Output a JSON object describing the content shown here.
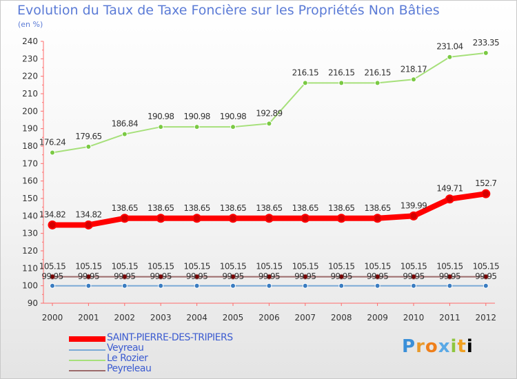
{
  "title": "Evolution du Taux de Taxe Foncière sur les Propriétés Non Bâties",
  "unit_label": "(en %)",
  "logo_text": "Proxiti",
  "chart_data": {
    "type": "line",
    "title": "Evolution du Taux de Taxe Foncière sur les Propriétés Non Bâties",
    "ylabel": "(en %)",
    "xlabel": "",
    "ylim": [
      90,
      240
    ],
    "yticks": [
      90,
      100,
      110,
      120,
      130,
      140,
      150,
      160,
      170,
      180,
      190,
      200,
      210,
      220,
      230,
      240
    ],
    "categories": [
      "2000",
      "2001",
      "2002",
      "2003",
      "2004",
      "2005",
      "2006",
      "2007",
      "2008",
      "2009",
      "2010",
      "2011",
      "2012"
    ],
    "legend_position": "bottom-left",
    "grid": false,
    "series": [
      {
        "name": "SAINT-PIERRE-DES-TRIPIERS",
        "color": "#ff0000",
        "emphasis": true,
        "values": [
          134.82,
          134.82,
          138.65,
          138.65,
          138.65,
          138.65,
          138.65,
          138.65,
          138.65,
          138.65,
          139.99,
          149.71,
          152.7
        ],
        "labels": [
          "134.82",
          "134.82",
          "138.65",
          "138.65",
          "138.65",
          "138.65",
          "138.65",
          "138.65",
          "138.65",
          "138.65",
          "139.99",
          "149.71",
          "152.7"
        ]
      },
      {
        "name": "Veyreau",
        "color": "#7aaad6",
        "values": [
          99.95,
          99.95,
          99.95,
          99.95,
          99.95,
          99.95,
          99.95,
          99.95,
          99.95,
          99.95,
          99.95,
          99.95,
          99.95
        ],
        "labels": [
          "99.95",
          "99.95",
          "99.95",
          "99.95",
          "99.95",
          "99.95",
          "99.95",
          "99.95",
          "99.95",
          "99.95",
          "99.95",
          "99.95",
          "99.95"
        ]
      },
      {
        "name": "Le Rozier",
        "color": "#a6e07a",
        "values": [
          176.24,
          179.65,
          186.84,
          190.98,
          190.98,
          190.98,
          192.89,
          216.15,
          216.15,
          216.15,
          218.17,
          231.04,
          233.35
        ],
        "labels": [
          "176.24",
          "179.65",
          "186.84",
          "190.98",
          "190.98",
          "190.98",
          "192.89",
          "216.15",
          "216.15",
          "216.15",
          "218.17",
          "231.04",
          "233.35"
        ]
      },
      {
        "name": "Peyreleau",
        "color": "#9b6a6a",
        "values": [
          105.15,
          105.15,
          105.15,
          105.15,
          105.15,
          105.15,
          105.15,
          105.15,
          105.15,
          105.15,
          105.15,
          105.15,
          105.15
        ],
        "labels": [
          "105.15",
          "105.15",
          "105.15",
          "105.15",
          "105.15",
          "105.15",
          "105.15",
          "105.15",
          "105.15",
          "105.15",
          "105.15",
          "105.15",
          "105.15"
        ]
      }
    ]
  }
}
